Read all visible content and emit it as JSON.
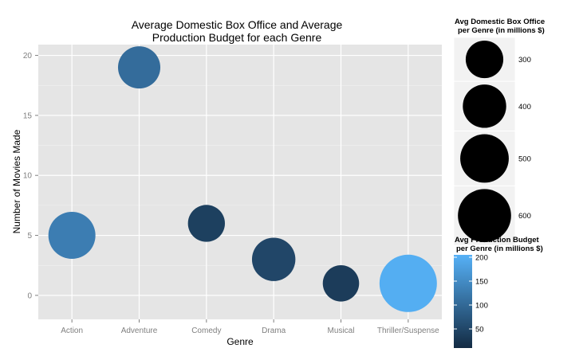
{
  "chart_data": {
    "type": "scatter",
    "title_line1": "Average Domestic Box Office and Average",
    "title_line2": "Production Budget for each Genre",
    "xlabel": "Genre",
    "ylabel": "Number of Movies Made",
    "categories": [
      "Action",
      "Adventure",
      "Comedy",
      "Drama",
      "Musical",
      "Thriller/Suspense"
    ],
    "ylim": [
      -2,
      20.9
    ],
    "y_ticks": [
      0,
      5,
      10,
      15,
      20
    ],
    "grid": true,
    "points": [
      {
        "genre": "Action",
        "movies": 5,
        "box_office": 470,
        "budget": 130
      },
      {
        "genre": "Adventure",
        "movies": 19,
        "box_office": 380,
        "budget": 105
      },
      {
        "genre": "Comedy",
        "movies": 6,
        "box_office": 290,
        "budget": 40
      },
      {
        "genre": "Drama",
        "movies": 3,
        "box_office": 400,
        "budget": 50
      },
      {
        "genre": "Musical",
        "movies": 1,
        "box_office": 280,
        "budget": 35
      },
      {
        "genre": "Thriller/Suspense",
        "movies": 1,
        "box_office": 700,
        "budget": 200
      }
    ],
    "size_legend": {
      "title_line1": "Avg Domestic Box Office",
      "title_line2": "per Genre (in millions $)",
      "entries": [
        300,
        400,
        500,
        600
      ]
    },
    "color_legend": {
      "title_line1": "Avg Production Budget",
      "title_line2": "per Genre (in millions $)",
      "ticks": [
        200,
        150,
        100,
        50
      ],
      "range": [
        10,
        205
      ],
      "low_color": "#132b43",
      "high_color": "#56b1f7"
    },
    "panel_color": "#e5e5e5",
    "legend_key_color": "#f2f2f2"
  }
}
